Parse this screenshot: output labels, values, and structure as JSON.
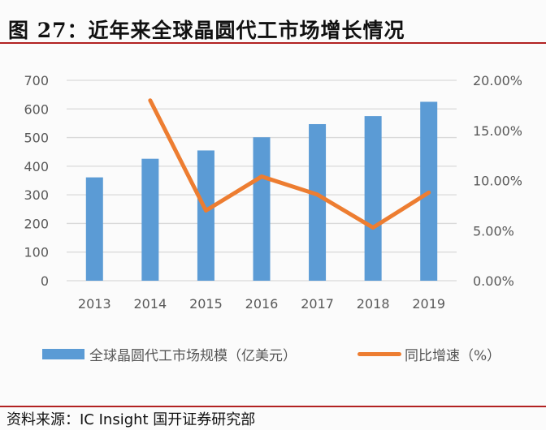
{
  "header": {
    "title": "图 27：近年来全球晶圆代工市场增长情况"
  },
  "legend": {
    "bar_label": "全球晶圆代工市场规模（亿美元）",
    "line_label": "同比增速（%）"
  },
  "footer": {
    "source": "资料来源：IC Insight 国开证券研究部"
  },
  "colors": {
    "bar": "#5b9bd5",
    "line": "#ed7d31",
    "rule": "#b22222",
    "grid": "#d9d9d9",
    "axis_text": "#595959"
  },
  "chart_data": {
    "type": "bar",
    "title": "近年来全球晶圆代工市场增长情况",
    "categories": [
      "2013",
      "2014",
      "2015",
      "2016",
      "2017",
      "2018",
      "2019"
    ],
    "series": [
      {
        "name": "全球晶圆代工市场规模（亿美元）",
        "type": "bar",
        "axis": "left",
        "values": [
          361,
          426,
          455,
          501,
          547,
          575,
          625
        ]
      },
      {
        "name": "同比增速（%）",
        "type": "line",
        "axis": "right",
        "values": [
          null,
          18.0,
          7.0,
          10.4,
          8.6,
          5.3,
          8.8
        ]
      }
    ],
    "left_axis": {
      "ylim": [
        0,
        700
      ],
      "ticks": [
        "0",
        "100",
        "200",
        "300",
        "400",
        "500",
        "600",
        "700"
      ]
    },
    "right_axis": {
      "ylim": [
        0,
        20
      ],
      "ticks": [
        "0.00%",
        "5.00%",
        "10.00%",
        "15.00%",
        "20.00%"
      ]
    },
    "xlabel": "",
    "ylabel": "",
    "grid": true,
    "legend_position": "bottom"
  }
}
